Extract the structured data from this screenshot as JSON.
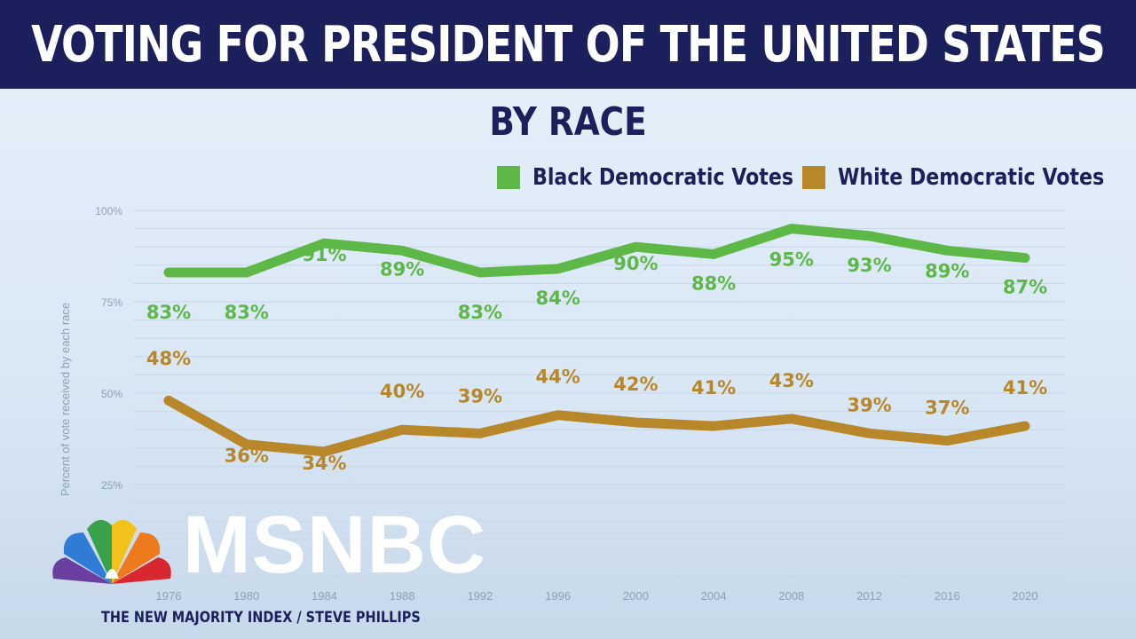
{
  "banner": {
    "title": "VOTING FOR PRESIDENT OF THE UNITED STATES"
  },
  "brand": {
    "network": "MSNBC",
    "logo_icon": "nbc-peacock-icon"
  },
  "footer": {
    "source": "THE NEW MAJORITY INDEX / STEVE PHILLIPS"
  },
  "colors": {
    "banner": "#1b1f5c",
    "green": "#5db848",
    "gold": "#b8872a",
    "text": "#1b1f5c"
  },
  "chart_data": {
    "type": "line",
    "title": "BY RACE",
    "ylabel": "Percent of vote received by each race",
    "xlabel": "",
    "ylim": [
      0,
      100
    ],
    "yticks": [
      "100%",
      "75%",
      "50%",
      "25%"
    ],
    "categories": [
      "1976",
      "1980",
      "1984",
      "1988",
      "1992",
      "1996",
      "2000",
      "2004",
      "2008",
      "2012",
      "2016",
      "2020"
    ],
    "legend_position": "top-right",
    "series": [
      {
        "name": "Black Democratic Votes",
        "color": "#5db848",
        "values": [
          83,
          83,
          91,
          89,
          83,
          84,
          90,
          88,
          95,
          93,
          89,
          87
        ],
        "labels": [
          "83%",
          "83%",
          "91%",
          "89%",
          "83%",
          "84%",
          "90%",
          "88%",
          "95%",
          "93%",
          "89%",
          "87%"
        ]
      },
      {
        "name": "White Democratic Votes",
        "color": "#b8872a",
        "values": [
          48,
          36,
          34,
          40,
          39,
          44,
          42,
          41,
          43,
          39,
          37,
          41
        ],
        "labels": [
          "48%",
          "36%",
          "34%",
          "40%",
          "39%",
          "44%",
          "42%",
          "41%",
          "43%",
          "39%",
          "37%",
          "41%"
        ]
      }
    ]
  }
}
